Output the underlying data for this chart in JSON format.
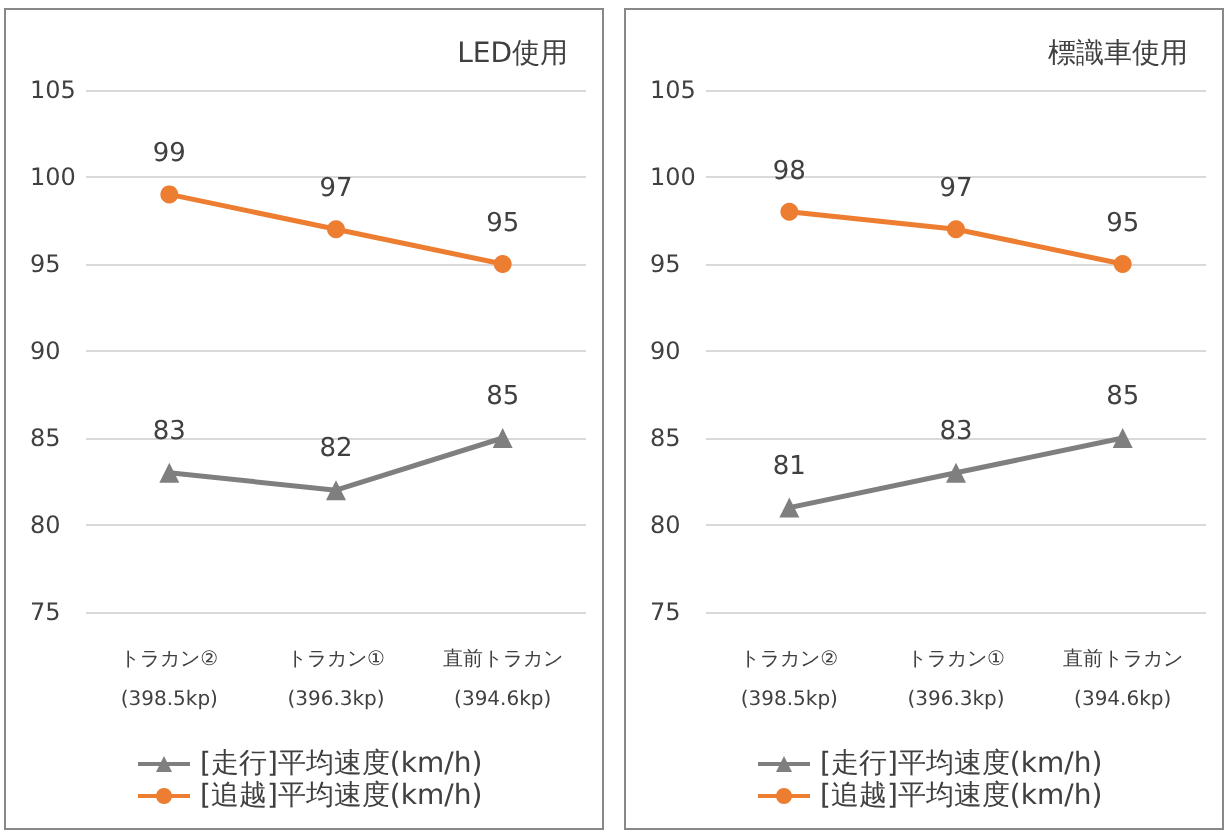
{
  "chart_data": [
    {
      "type": "line",
      "title": "LED使用",
      "categories": [
        "トラカン②\n(398.5kp)",
        "トラカン①\n(396.3kp)",
        "直前トラカン\n(394.6kp)"
      ],
      "series": [
        {
          "name": "[走行]平均速度(km/h)",
          "color": "#7f7f7f",
          "marker": "triangle",
          "values": [
            83,
            82,
            85
          ]
        },
        {
          "name": "[追越]平均速度(km/h)",
          "color": "#ed7d31",
          "marker": "circle",
          "values": [
            99,
            97,
            95
          ]
        }
      ],
      "ylim": [
        75,
        105
      ],
      "yticks": [
        75,
        80,
        85,
        90,
        95,
        100,
        105
      ],
      "grid": "y",
      "legend": "bottom",
      "data_labels": true
    },
    {
      "type": "line",
      "title": "標識車使用",
      "categories": [
        "トラカン②\n(398.5kp)",
        "トラカン①\n(396.3kp)",
        "直前トラカン\n(394.6kp)"
      ],
      "series": [
        {
          "name": "[走行]平均速度(km/h)",
          "color": "#7f7f7f",
          "marker": "triangle",
          "values": [
            81,
            83,
            85
          ]
        },
        {
          "name": "[追越]平均速度(km/h)",
          "color": "#ed7d31",
          "marker": "circle",
          "values": [
            98,
            97,
            95
          ]
        }
      ],
      "ylim": [
        75,
        105
      ],
      "yticks": [
        75,
        80,
        85,
        90,
        95,
        100,
        105
      ],
      "grid": "y",
      "legend": "bottom",
      "data_labels": true
    }
  ]
}
